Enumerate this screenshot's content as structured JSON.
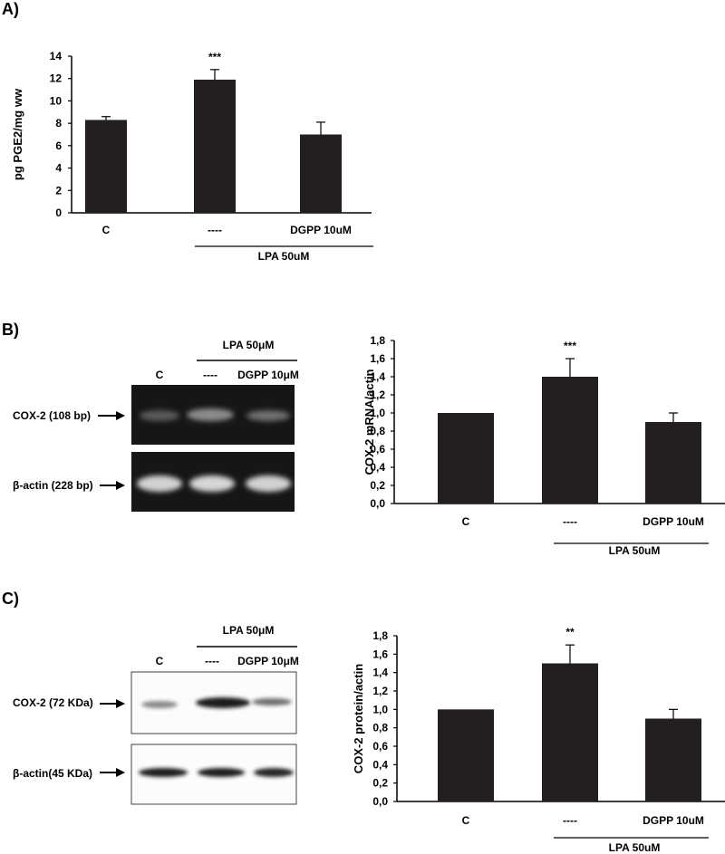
{
  "panels": {
    "A": {
      "label": "A)"
    },
    "B": {
      "label": "B)",
      "gel": {
        "group_label": "LPA 50μM",
        "lanes": [
          "C",
          "----",
          "DGPP 10μM"
        ],
        "rows": [
          {
            "label": "COX-2 (108 bp)"
          },
          {
            "label": "β-actin (228 bp)"
          }
        ]
      }
    },
    "C": {
      "label": "C)",
      "blot": {
        "group_label": "LPA 50μM",
        "lanes": [
          "C",
          "----",
          "DGPP 10μM"
        ],
        "rows": [
          {
            "label": "COX-2 (72 KDa)"
          },
          {
            "label": "β-actin(45 KDa)"
          }
        ]
      }
    }
  },
  "chart_data": [
    {
      "id": "A",
      "type": "bar",
      "categories": [
        "C",
        "----",
        "DGPP 10uM"
      ],
      "group_label": "LPA 50uM",
      "values": [
        8.3,
        11.9,
        7.0
      ],
      "errors": [
        0.3,
        0.9,
        1.1
      ],
      "significance": [
        "",
        "***",
        ""
      ],
      "ylabel": "pg PGE2/mg ww",
      "ylim": [
        0,
        14
      ],
      "yticks": [
        "0",
        "2",
        "4",
        "6",
        "8",
        "10",
        "12",
        "14"
      ],
      "color": "#231f20"
    },
    {
      "id": "B",
      "type": "bar",
      "categories": [
        "C",
        "----",
        "DGPP 10uM"
      ],
      "group_label": "LPA 50uM",
      "values": [
        1.0,
        1.4,
        0.9
      ],
      "errors": [
        0,
        0.2,
        0.1
      ],
      "significance": [
        "",
        "***",
        ""
      ],
      "ylabel": "COX-2 mRNA/actin",
      "ylim": [
        0,
        1.8
      ],
      "yticks": [
        "0,0",
        "0,2",
        "0,4",
        "0,6",
        "0,8",
        "1,0",
        "1,2",
        "1,4",
        "1,6",
        "1,8"
      ],
      "color": "#231f20"
    },
    {
      "id": "C",
      "type": "bar",
      "categories": [
        "C",
        "----",
        "DGPP 10uM"
      ],
      "group_label": "LPA 50uM",
      "values": [
        1.0,
        1.5,
        0.9
      ],
      "errors": [
        0,
        0.2,
        0.1
      ],
      "significance": [
        "",
        "**",
        ""
      ],
      "ylabel": "COX-2 protein/actin",
      "ylim": [
        0,
        1.8
      ],
      "yticks": [
        "0,0",
        "0,2",
        "0,4",
        "0,6",
        "0,8",
        "1,0",
        "1,2",
        "1,4",
        "1,6",
        "1,8"
      ],
      "color": "#231f20"
    }
  ]
}
